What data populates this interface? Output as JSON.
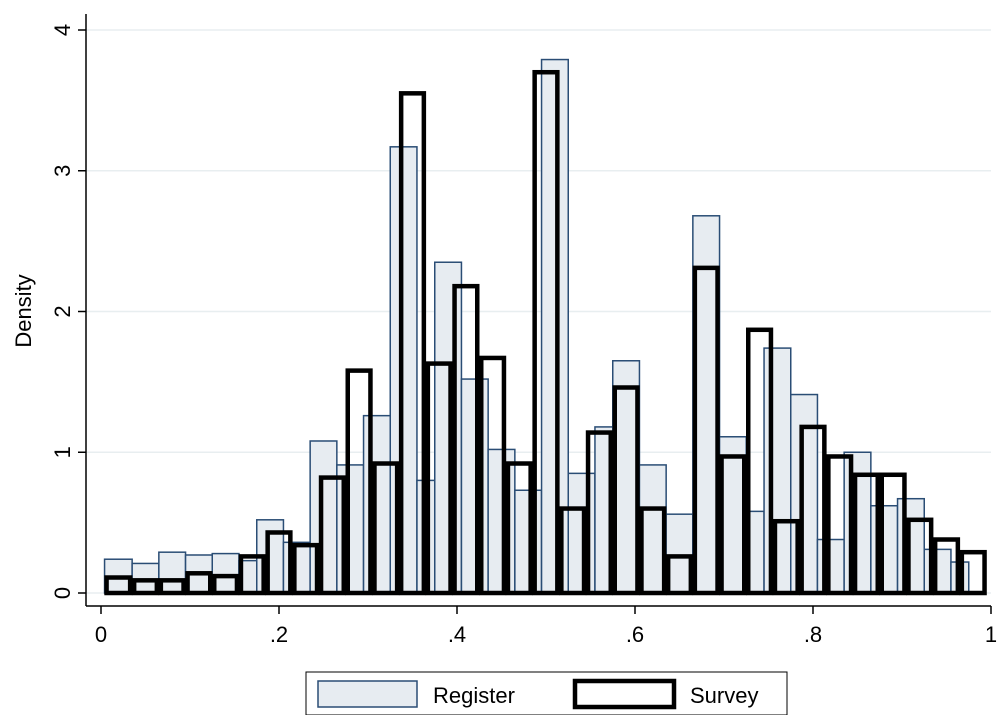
{
  "chart_data": {
    "type": "bar",
    "title": "",
    "xlabel": "",
    "ylabel": "Density",
    "xlim": [
      0,
      1
    ],
    "ylim": [
      0,
      4
    ],
    "grid": true,
    "legend_position": "bottom",
    "bin_width": 0.0333,
    "x_ticks": [
      0,
      0.2,
      0.4,
      0.6,
      0.8,
      1
    ],
    "x_tick_labels": [
      "0",
      ".2",
      ".4",
      ".6",
      ".8",
      "1"
    ],
    "y_ticks": [
      0,
      1,
      2,
      3,
      4
    ],
    "y_tick_labels": [
      "0",
      "1",
      "2",
      "3",
      "4"
    ],
    "series": [
      {
        "name": "Register",
        "fill_color": "#e7ecf1",
        "edge_color": "#2a4d75",
        "bins": [
          [
            0.004,
            0.035,
            0.24
          ],
          [
            0.035,
            0.065,
            0.21
          ],
          [
            0.065,
            0.095,
            0.29
          ],
          [
            0.095,
            0.125,
            0.27
          ],
          [
            0.125,
            0.155,
            0.28
          ],
          [
            0.155,
            0.175,
            0.23
          ],
          [
            0.175,
            0.205,
            0.52
          ],
          [
            0.205,
            0.235,
            0.36
          ],
          [
            0.235,
            0.265,
            1.08
          ],
          [
            0.265,
            0.295,
            0.91
          ],
          [
            0.295,
            0.325,
            1.26
          ],
          [
            0.325,
            0.355,
            3.17
          ],
          [
            0.355,
            0.375,
            0.8
          ],
          [
            0.375,
            0.405,
            2.35
          ],
          [
            0.405,
            0.435,
            1.52
          ],
          [
            0.435,
            0.465,
            1.02
          ],
          [
            0.465,
            0.495,
            0.73
          ],
          [
            0.495,
            0.525,
            3.79
          ],
          [
            0.525,
            0.555,
            0.85
          ],
          [
            0.555,
            0.575,
            1.18
          ],
          [
            0.575,
            0.605,
            1.65
          ],
          [
            0.605,
            0.635,
            0.91
          ],
          [
            0.635,
            0.665,
            0.56
          ],
          [
            0.665,
            0.695,
            2.68
          ],
          [
            0.695,
            0.725,
            1.11
          ],
          [
            0.725,
            0.745,
            0.58
          ],
          [
            0.745,
            0.775,
            1.74
          ],
          [
            0.775,
            0.805,
            1.41
          ],
          [
            0.805,
            0.835,
            0.38
          ],
          [
            0.835,
            0.865,
            1.0
          ],
          [
            0.865,
            0.895,
            0.62
          ],
          [
            0.895,
            0.925,
            0.67
          ],
          [
            0.925,
            0.955,
            0.31
          ],
          [
            0.955,
            0.975,
            0.22
          ]
        ]
      },
      {
        "name": "Survey",
        "fill_color": "none",
        "edge_color": "#000000",
        "bins": [
          [
            0.004,
            0.035,
            0.11
          ],
          [
            0.035,
            0.065,
            0.09
          ],
          [
            0.065,
            0.095,
            0.09
          ],
          [
            0.095,
            0.125,
            0.14
          ],
          [
            0.125,
            0.155,
            0.12
          ],
          [
            0.155,
            0.185,
            0.26
          ],
          [
            0.185,
            0.215,
            0.43
          ],
          [
            0.215,
            0.245,
            0.34
          ],
          [
            0.245,
            0.275,
            0.82
          ],
          [
            0.275,
            0.305,
            1.58
          ],
          [
            0.305,
            0.335,
            0.92
          ],
          [
            0.335,
            0.365,
            3.55
          ],
          [
            0.365,
            0.395,
            1.63
          ],
          [
            0.395,
            0.425,
            2.18
          ],
          [
            0.425,
            0.455,
            1.67
          ],
          [
            0.455,
            0.485,
            0.92
          ],
          [
            0.485,
            0.515,
            3.7
          ],
          [
            0.515,
            0.545,
            0.6
          ],
          [
            0.545,
            0.575,
            1.14
          ],
          [
            0.575,
            0.605,
            1.46
          ],
          [
            0.605,
            0.635,
            0.6
          ],
          [
            0.635,
            0.665,
            0.26
          ],
          [
            0.665,
            0.695,
            2.31
          ],
          [
            0.695,
            0.725,
            0.97
          ],
          [
            0.725,
            0.755,
            1.87
          ],
          [
            0.755,
            0.785,
            0.51
          ],
          [
            0.785,
            0.815,
            1.18
          ],
          [
            0.815,
            0.845,
            0.97
          ],
          [
            0.845,
            0.875,
            0.84
          ],
          [
            0.875,
            0.905,
            0.84
          ],
          [
            0.905,
            0.935,
            0.52
          ],
          [
            0.935,
            0.965,
            0.38
          ],
          [
            0.965,
            0.995,
            0.29
          ]
        ]
      }
    ]
  }
}
